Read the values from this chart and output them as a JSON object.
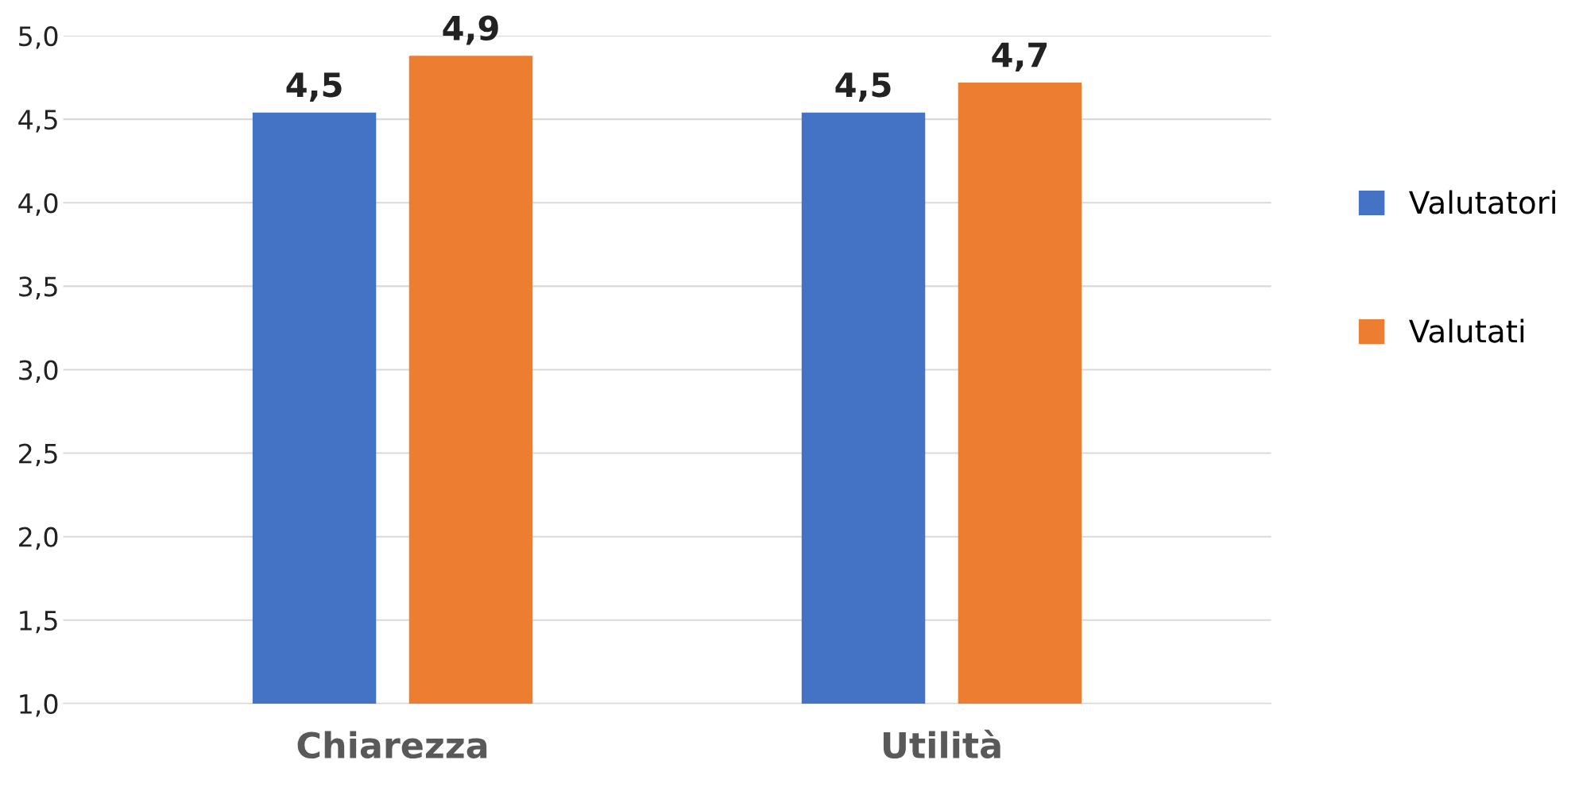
{
  "chart_data": {
    "type": "bar",
    "categories": [
      "Chiarezza",
      "Utilità"
    ],
    "series": [
      {
        "name": "Valutatori",
        "color": "#4472c4",
        "values": [
          4.54,
          4.54
        ],
        "value_labels": [
          "4,5",
          "4,5"
        ]
      },
      {
        "name": "Valutati",
        "color": "#ed7d31",
        "values": [
          4.88,
          4.72
        ],
        "value_labels": [
          "4,9",
          "4,7"
        ]
      }
    ],
    "ylim": [
      1.0,
      5.0
    ],
    "yticks": [
      {
        "value": 1.0,
        "label": "1,0"
      },
      {
        "value": 1.5,
        "label": "1,5"
      },
      {
        "value": 2.0,
        "label": "2,0"
      },
      {
        "value": 2.5,
        "label": "2,5"
      },
      {
        "value": 3.0,
        "label": "3,0"
      },
      {
        "value": 3.5,
        "label": "3,5"
      },
      {
        "value": 4.0,
        "label": "4,0"
      },
      {
        "value": 4.5,
        "label": "4,5"
      },
      {
        "value": 5.0,
        "label": "5,0"
      }
    ],
    "grid": "y",
    "legend": "right"
  }
}
